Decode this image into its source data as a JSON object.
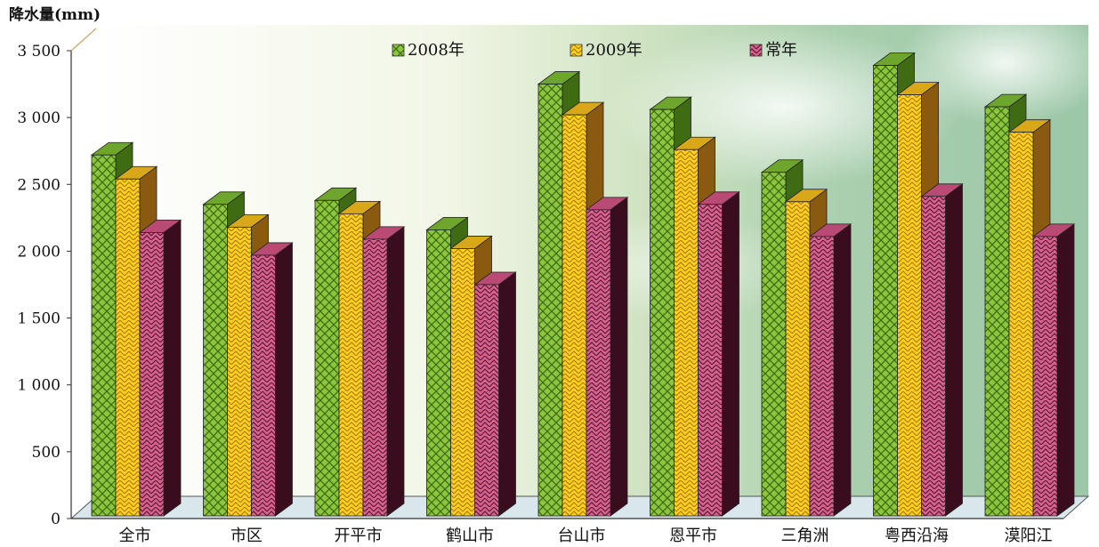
{
  "chart_data": {
    "type": "bar",
    "ylabel": "降水量(mm)",
    "ylim": [
      0,
      3500
    ],
    "yticks": [
      0,
      500,
      1000,
      1500,
      2000,
      2500,
      3000,
      3500
    ],
    "categories": [
      "全市",
      "市区",
      "开平市",
      "鹤山市",
      "台山市",
      "恩平市",
      "三角洲",
      "粤西沿海",
      "漠阳江"
    ],
    "series": [
      {
        "name": "2008年",
        "values": [
          2700,
          2330,
          2360,
          2140,
          3230,
          3040,
          2570,
          3370,
          3060
        ],
        "color": "#8cc63f",
        "side": "#3f6b12",
        "top": "#6ea52c",
        "pattern": "crosshatch"
      },
      {
        "name": "2009年",
        "values": [
          2520,
          2160,
          2260,
          2000,
          3000,
          2740,
          2350,
          3150,
          2870
        ],
        "color": "#ffd21f",
        "side": "#8a5a10",
        "top": "#d9a818",
        "pattern": "herringbone"
      },
      {
        "name": "常年",
        "values": [
          2120,
          1950,
          2070,
          1730,
          2290,
          2330,
          2090,
          2390,
          2090
        ],
        "color": "#d9628f",
        "side": "#3a0d1e",
        "top": "#b84a74",
        "pattern": "herringbone"
      }
    ],
    "legend_position": "top",
    "grid": false
  }
}
